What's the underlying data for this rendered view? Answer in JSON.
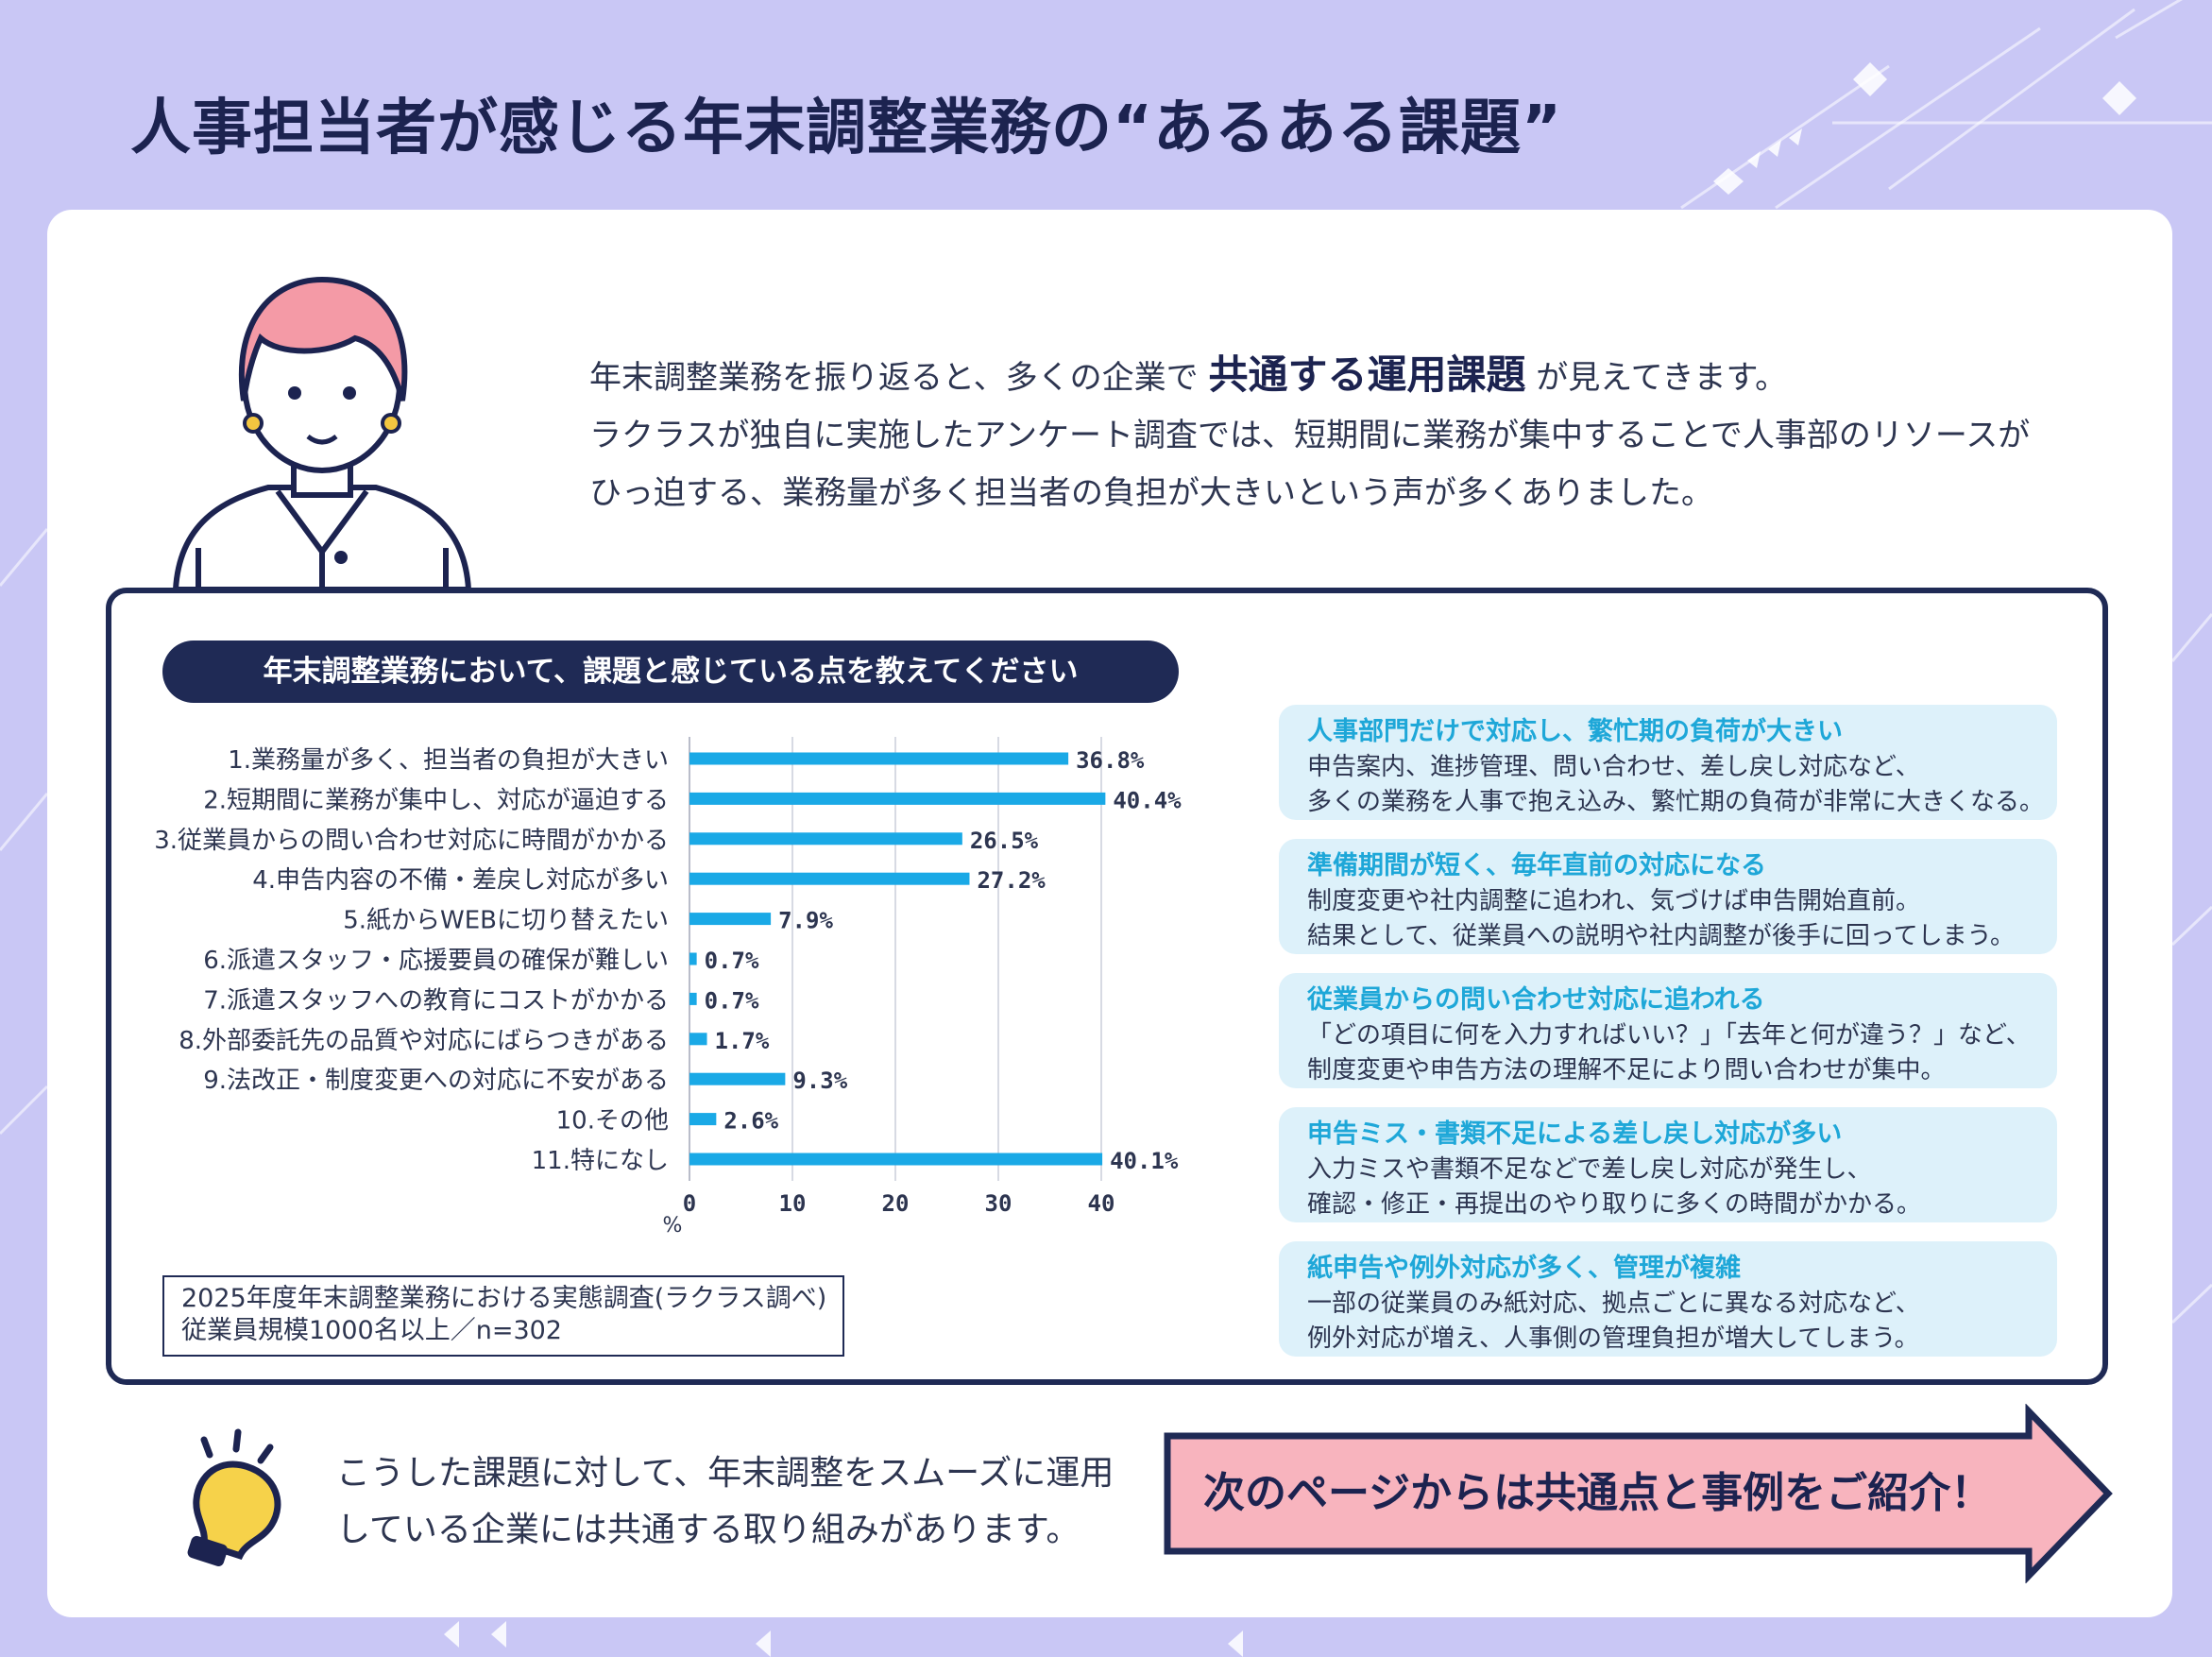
{
  "title": "人事担当者が感じる年末調整業務の“あるある課題”",
  "intro": {
    "line1_before": "年末調整業務を振り返ると、多くの企業で",
    "line1_emphasis": "共通する運用課題",
    "line1_after": "が見えてきます。",
    "line2": "ラクラスが独自に実施したアンケート調査では、短期間に業務が集中することで人事部のリソースが",
    "line3": "ひっ迫する、業務量が多く担当者の負担が大きいという声が多くありました。"
  },
  "survey_header": "年末調整業務において、課題と感じている点を教えてください",
  "chart_data": {
    "type": "bar",
    "orientation": "horizontal",
    "categories": [
      "1.業務量が多く、担当者の負担が大きい",
      "2.短期間に業務が集中し、対応が逼迫する",
      "3.従業員からの問い合わせ対応に時間がかかる",
      "4.申告内容の不備・差戻し対応が多い",
      "5.紙からWEBに切り替えたい",
      "6.派遣スタッフ・応援要員の確保が難しい",
      "7.派遣スタッフへの教育にコストがかかる",
      "8.外部委託先の品質や対応にばらつきがある",
      "9.法改正・制度変更への対応に不安がある",
      "10.その他",
      "11.特になし"
    ],
    "values": [
      36.8,
      40.4,
      26.5,
      27.2,
      7.9,
      0.7,
      0.7,
      1.7,
      9.3,
      2.6,
      40.1
    ],
    "value_labels": [
      "36.8%",
      "40.4%",
      "26.5%",
      "27.2%",
      "7.9%",
      "0.7%",
      "0.7%",
      "1.7%",
      "9.3%",
      "2.6%",
      "40.1%"
    ],
    "xticks": [
      "0",
      "10",
      "20",
      "30",
      "40"
    ],
    "xlabel": "%",
    "xlim": [
      0,
      40
    ],
    "grid": true,
    "bar_color": "#1aa9e6"
  },
  "source": {
    "line1": "2025年度年末調整業務における実態調査(ラクラス調べ)",
    "line2": "従業員規模1000名以上／n=302"
  },
  "issues": [
    {
      "title": "人事部門だけで対応し、繁忙期の負荷が大きい",
      "line1": "申告案内、進捗管理、問い合わせ、差し戻し対応など、",
      "line2": "多くの業務を人事で抱え込み、繁忙期の負荷が非常に大きくなる。"
    },
    {
      "title": "準備期間が短く、毎年直前の対応になる",
      "line1": "制度変更や社内調整に追われ、気づけば申告開始直前。",
      "line2": "結果として、従業員への説明や社内調整が後手に回ってしまう。"
    },
    {
      "title": "従業員からの問い合わせ対応に追われる",
      "line1": "「どの項目に何を入力すればいい？」「去年と何が違う？」など、",
      "line2": "制度変更や申告方法の理解不足により問い合わせが集中。"
    },
    {
      "title": "申告ミス・書類不足による差し戻し対応が多い",
      "line1": "入力ミスや書類不足などで差し戻し対応が発生し、",
      "line2": "確認・修正・再提出のやり取りに多くの時間がかかる。"
    },
    {
      "title": "紙申告や例外対応が多く、管理が複雑",
      "line1": "一部の従業員のみ紙対応、拠点ごとに異なる対応など、",
      "line2": "例外対応が増え、人事側の管理負担が増大してしまう。"
    }
  ],
  "closing": {
    "line1": "こうした課題に対して、年末調整をスムーズに運用",
    "line2": "している企業には共通する取り組みがあります。"
  },
  "cta": {
    "label": "次のページからは共通点と事例をご紹介！"
  },
  "colors": {
    "background": "#c9c7f5",
    "navy": "#1f2a55",
    "bar": "#1aa9e6",
    "issue_title": "#1ea7d8",
    "issue_bg": "#ddf1fa",
    "cta_fill": "#f8b4be"
  },
  "icons": {
    "person": "person-illustration",
    "bulb": "lightbulb-icon",
    "arrow": "arrow-right-icon"
  }
}
